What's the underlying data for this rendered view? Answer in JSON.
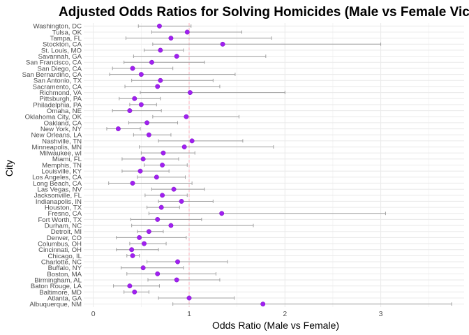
{
  "chart_data": {
    "type": "scatter",
    "title": "Adjusted Odds Ratios for Solving Homicides (Male vs Female Victi",
    "xlabel": "Odds Ratio (Male vs Female)",
    "ylabel": "City",
    "xlim": [
      -0.1,
      3.87
    ],
    "xticks": [
      0,
      1,
      2,
      3
    ],
    "grid": true,
    "reference_line": {
      "x": 1,
      "color": "#ffb6c1",
      "style": "dashed"
    },
    "colors": {
      "point": "#a020f0",
      "errorbar": "#a0a0a0",
      "grid": "#ebebeb"
    },
    "cities": [
      "Washington, DC",
      "Tulsa, OK",
      "Tampa, FL",
      "Stockton, CA",
      "St. Louis, MO",
      "Savannah, GA",
      "San Francisco, CA",
      "San Diego, CA",
      "San Bernardino, CA",
      "San Antonio, TX",
      "Sacramento, CA",
      "Richmond, VA",
      "Pittsburgh, PA",
      "Philadelphia, PA",
      "Omaha, NE",
      "Oklahoma City, OK",
      "Oakland, CA",
      "New York, NY",
      "New Orleans, LA",
      "Nashville, TN",
      "Minneapolis, MN",
      "Milwaukee, wI",
      "Miami, FL",
      "Memphis, TN",
      "Louisville, KY",
      "Los Angeles, CA",
      "Long Beach, CA",
      "Las Vegas, NV",
      "Jacksonville, FL",
      "Indianapolis, IN",
      "Houston, TX",
      "Fresno, CA",
      "Fort Worth, TX",
      "Durham, NC",
      "Detroit, MI",
      "Denver, CO",
      "Columbus, OH",
      "Cincinnati, OH",
      "Chicago, IL",
      "Charlotte, NC",
      "Buffalo, NY",
      "Boston, MA",
      "Birmingham, AL",
      "Baton Rouge, LA",
      "Baltimore, MD",
      "Atlanta, GA",
      "Albuquerque, NM"
    ],
    "or": [
      0.69,
      0.98,
      0.81,
      1.35,
      0.7,
      0.87,
      0.61,
      0.41,
      0.5,
      0.7,
      0.67,
      1.01,
      0.43,
      0.5,
      0.38,
      0.97,
      0.56,
      0.26,
      0.58,
      1.03,
      0.95,
      0.73,
      0.52,
      0.72,
      0.49,
      0.66,
      0.41,
      0.84,
      0.72,
      0.92,
      0.71,
      1.34,
      0.67,
      0.81,
      0.58,
      0.48,
      0.53,
      0.4,
      0.41,
      0.88,
      0.52,
      0.67,
      0.87,
      0.38,
      0.43,
      1.0,
      1.77
    ],
    "lower": [
      0.47,
      0.61,
      0.34,
      0.62,
      0.53,
      0.42,
      0.32,
      0.2,
      0.17,
      0.4,
      0.33,
      0.49,
      0.27,
      0.38,
      0.2,
      0.62,
      0.37,
      0.14,
      0.42,
      0.68,
      0.48,
      0.5,
      0.3,
      0.53,
      0.3,
      0.46,
      0.16,
      0.61,
      0.54,
      0.68,
      0.56,
      0.58,
      0.39,
      0.4,
      0.46,
      0.24,
      0.38,
      0.24,
      0.35,
      0.56,
      0.29,
      0.35,
      0.57,
      0.21,
      0.32,
      0.68,
      0.83
    ],
    "upper": [
      1.02,
      1.55,
      1.86,
      3.0,
      0.94,
      1.8,
      1.16,
      0.83,
      1.48,
      1.25,
      1.32,
      2.0,
      0.7,
      0.66,
      0.71,
      1.52,
      0.88,
      0.49,
      0.81,
      1.56,
      1.88,
      1.06,
      0.89,
      0.98,
      0.79,
      0.96,
      1.03,
      1.16,
      0.98,
      1.25,
      0.9,
      3.05,
      1.13,
      1.67,
      0.73,
      0.97,
      0.76,
      0.68,
      0.48,
      1.4,
      0.94,
      1.28,
      1.32,
      0.69,
      0.58,
      1.47,
      3.74
    ]
  }
}
